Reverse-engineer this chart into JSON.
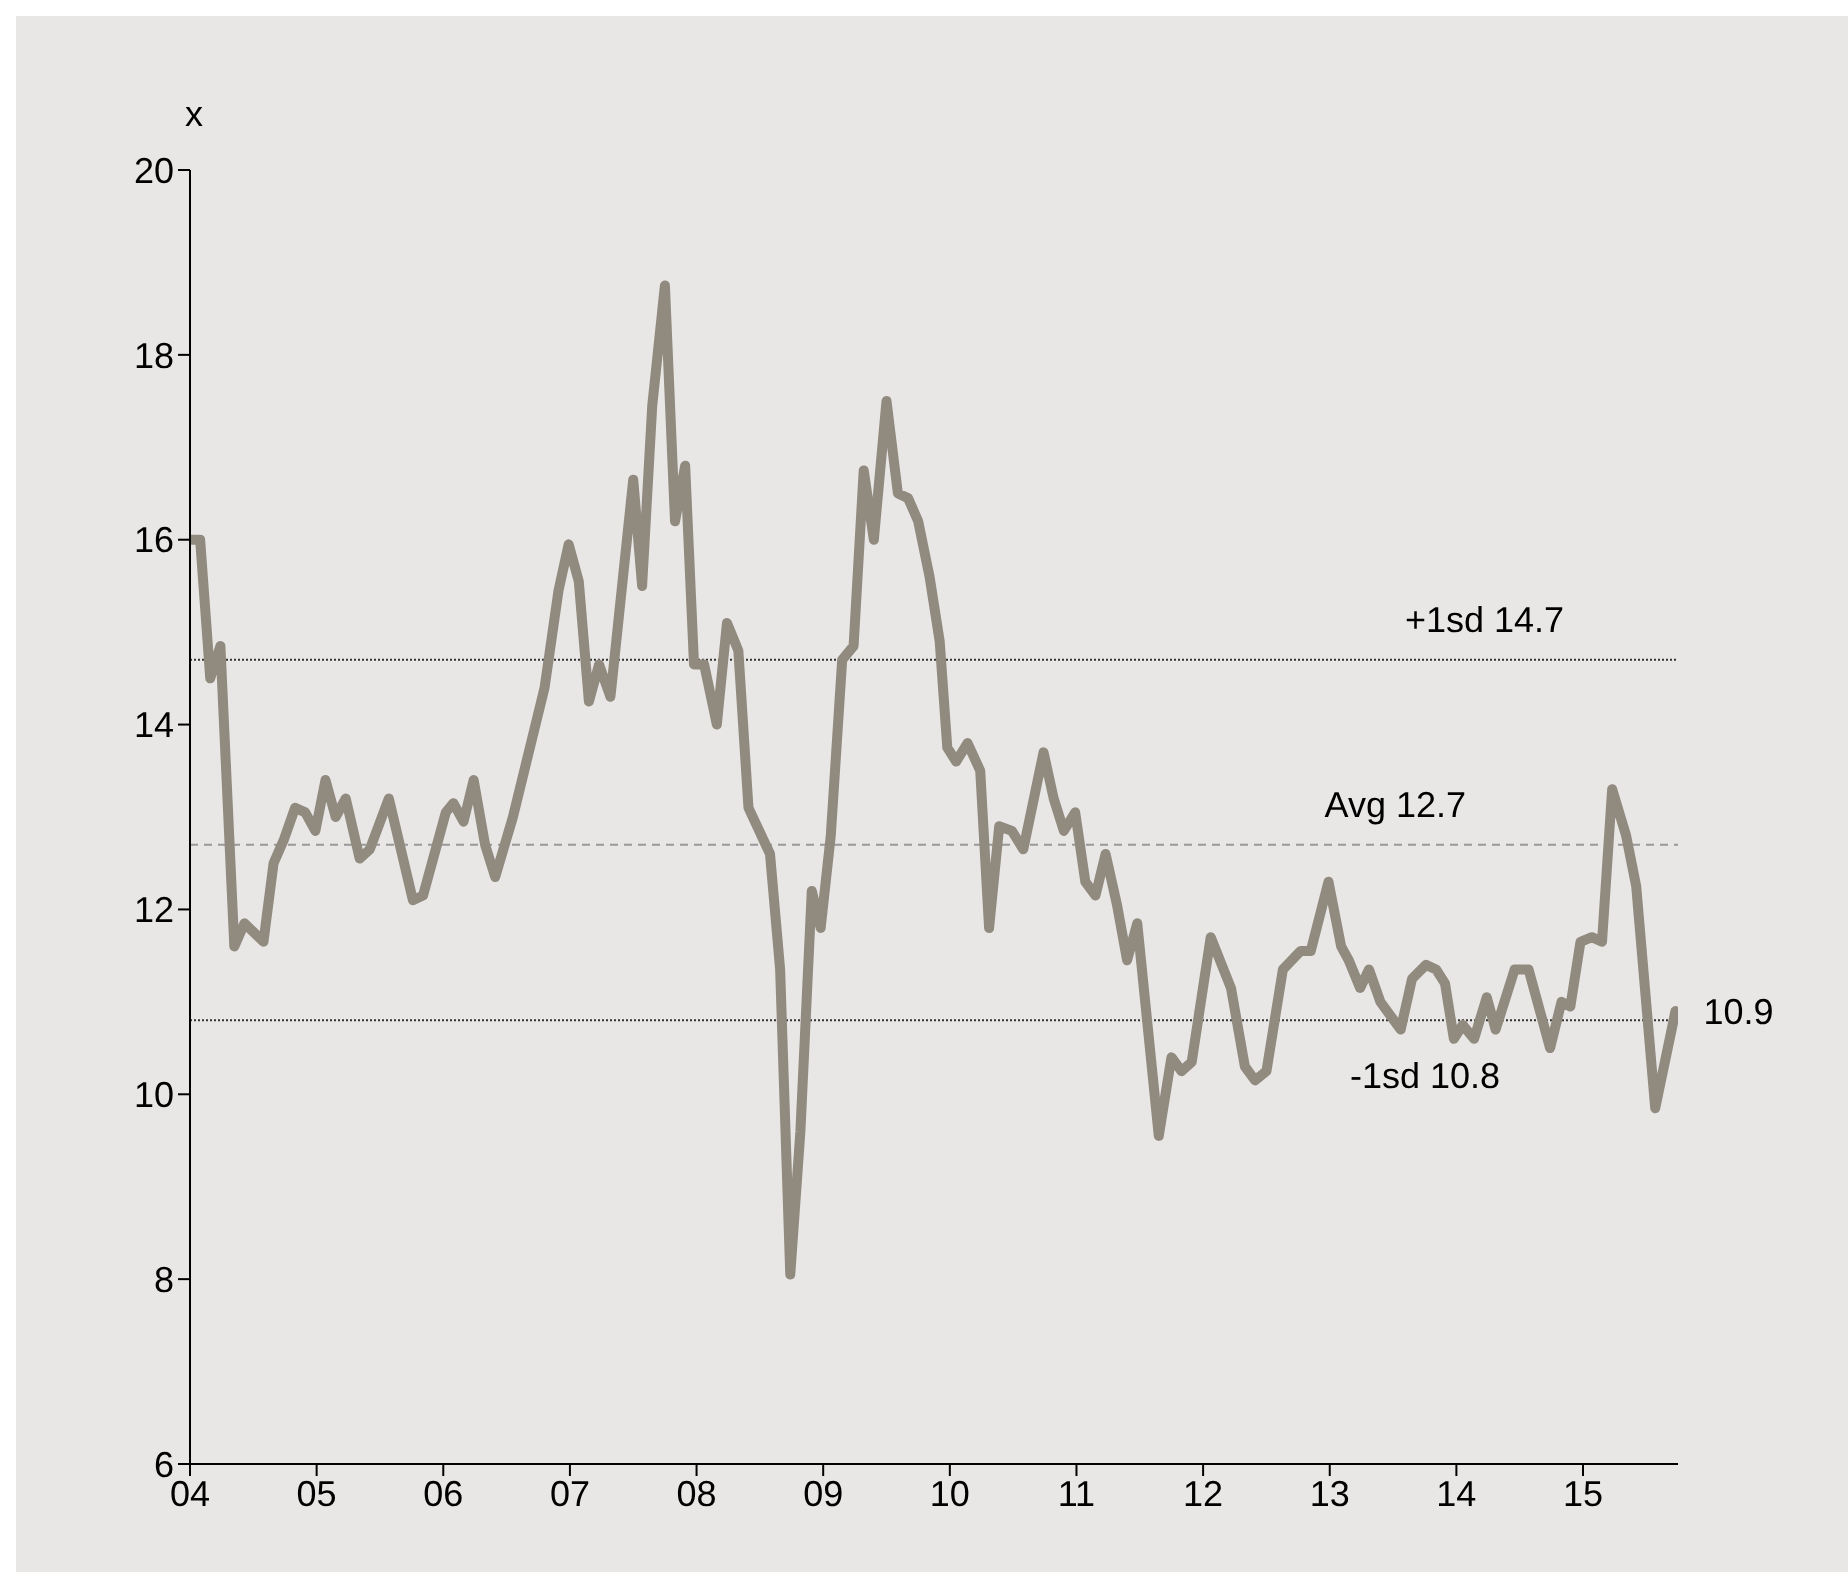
{
  "chart_data": {
    "type": "line",
    "ylabel": "x",
    "x": [
      2004.0,
      2004.08,
      2004.16,
      2004.24,
      2004.35,
      2004.43,
      2004.58,
      2004.66,
      2004.74,
      2004.83,
      2004.91,
      2004.99,
      2005.07,
      2005.15,
      2005.23,
      2005.34,
      2005.42,
      2005.57,
      2005.76,
      2005.84,
      2006.02,
      2006.08,
      2006.16,
      2006.24,
      2006.33,
      2006.41,
      2006.55,
      2006.8,
      2006.91,
      2006.99,
      2007.07,
      2007.15,
      2007.23,
      2007.32,
      2007.5,
      2007.57,
      2007.65,
      2007.75,
      2007.83,
      2007.91,
      2007.98,
      2008.06,
      2008.16,
      2008.24,
      2008.33,
      2008.41,
      2008.58,
      2008.66,
      2008.74,
      2008.82,
      2008.91,
      2008.98,
      2009.06,
      2009.15,
      2009.24,
      2009.32,
      2009.4,
      2009.5,
      2009.59,
      2009.67,
      2009.75,
      2009.84,
      2009.92,
      2009.98,
      2010.05,
      2010.14,
      2010.24,
      2010.31,
      2010.39,
      2010.49,
      2010.58,
      2010.74,
      2010.82,
      2010.9,
      2010.99,
      2011.07,
      2011.15,
      2011.23,
      2011.32,
      2011.4,
      2011.48,
      2011.65,
      2011.75,
      2011.83,
      2011.91,
      2012.06,
      2012.22,
      2012.33,
      2012.41,
      2012.5,
      2012.63,
      2012.77,
      2012.85,
      2012.99,
      2013.09,
      2013.15,
      2013.24,
      2013.31,
      2013.4,
      2013.56,
      2013.65,
      2013.76,
      2013.84,
      2013.91,
      2013.98,
      2014.05,
      2014.14,
      2014.24,
      2014.31,
      2014.46,
      2014.57,
      2014.74,
      2014.83,
      2014.9,
      2014.98,
      2015.07,
      2015.15,
      2015.23,
      2015.34,
      2015.42,
      2015.57,
      2015.73
    ],
    "series": [
      {
        "color": "#918a7f",
        "values": [
          16.0,
          16.0,
          14.5,
          14.85,
          11.6,
          11.85,
          11.65,
          12.5,
          12.75,
          13.1,
          13.05,
          12.85,
          13.4,
          13.0,
          13.2,
          12.55,
          12.65,
          13.2,
          12.1,
          12.15,
          13.05,
          13.15,
          12.95,
          13.4,
          12.7,
          12.35,
          13.0,
          14.4,
          15.45,
          15.95,
          15.55,
          14.25,
          14.65,
          14.3,
          16.65,
          15.5,
          17.45,
          18.75,
          16.2,
          16.8,
          14.65,
          14.65,
          14.0,
          15.1,
          14.8,
          13.1,
          12.6,
          11.35,
          8.05,
          9.6,
          12.2,
          11.8,
          12.8,
          14.7,
          14.85,
          16.75,
          16.0,
          17.5,
          16.5,
          16.45,
          16.2,
          15.6,
          14.9,
          13.75,
          13.6,
          13.8,
          13.5,
          11.8,
          12.9,
          12.85,
          12.65,
          13.7,
          13.2,
          12.85,
          13.05,
          12.3,
          12.15,
          12.6,
          12.05,
          11.45,
          11.85,
          9.55,
          10.4,
          10.25,
          10.35,
          11.7,
          11.15,
          10.3,
          10.15,
          10.25,
          11.35,
          11.55,
          11.55,
          12.3,
          11.6,
          11.45,
          11.15,
          11.35,
          11.0,
          10.7,
          11.25,
          11.4,
          11.35,
          11.2,
          10.6,
          10.75,
          10.6,
          11.05,
          10.7,
          11.35,
          11.35,
          10.5,
          11.0,
          10.95,
          11.65,
          11.7,
          11.65,
          13.3,
          12.8,
          12.25,
          9.85,
          10.9
        ]
      }
    ],
    "xlim": [
      2004,
      2015.75
    ],
    "xticks": [
      {
        "value": 2004,
        "label": "04"
      },
      {
        "value": 2005,
        "label": "05"
      },
      {
        "value": 2006,
        "label": "06"
      },
      {
        "value": 2007,
        "label": "07"
      },
      {
        "value": 2008,
        "label": "08"
      },
      {
        "value": 2009,
        "label": "09"
      },
      {
        "value": 2010,
        "label": "10"
      },
      {
        "value": 2011,
        "label": "11"
      },
      {
        "value": 2012,
        "label": "12"
      },
      {
        "value": 2013,
        "label": "13"
      },
      {
        "value": 2014,
        "label": "14"
      },
      {
        "value": 2015,
        "label": "15"
      }
    ],
    "ylim": [
      6,
      20
    ],
    "yticks": [
      6,
      8,
      10,
      12,
      14,
      16,
      18,
      20
    ],
    "ref_lines": [
      {
        "axis": "y",
        "value": 14.7,
        "label": "+1sd 14.7",
        "color": "#333333",
        "line_style": "dotted"
      },
      {
        "axis": "y",
        "value": 12.7,
        "label": "Avg 12.7",
        "color": "#999999",
        "line_style": "dashed"
      },
      {
        "axis": "y",
        "value": 10.8,
        "label": "-1sd 10.8",
        "color": "#333333",
        "line_style": "dotted"
      }
    ],
    "annotations": [
      {
        "text": "10.9",
        "x": 2015.73,
        "y": 10.9
      }
    ],
    "grid": false,
    "legend": false,
    "marker": "none",
    "line_style": "solid"
  }
}
